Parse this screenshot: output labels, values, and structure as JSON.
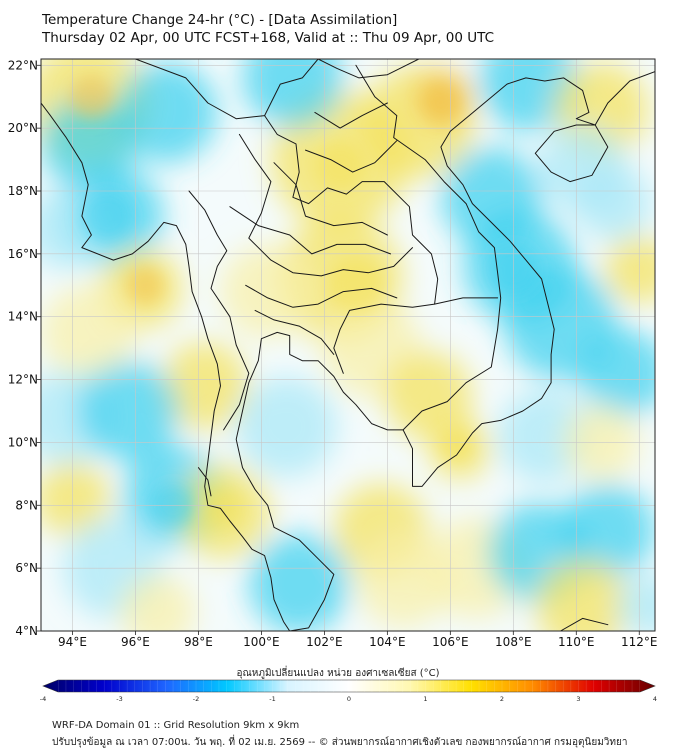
{
  "title": {
    "line1": "Temperature Change 24-hr (°C) - [Data Assimilation]",
    "line2": "Thursday 02 Apr, 00 UTC FCST+168, Valid at :: Thu 09 Apr, 00 UTC"
  },
  "map": {
    "lon_range": [
      93,
      112.5
    ],
    "lat_range": [
      4,
      22.2
    ],
    "lon_ticks": [
      {
        "value": 94,
        "label": "94°E"
      },
      {
        "value": 96,
        "label": "96°E"
      },
      {
        "value": 98,
        "label": "98°E"
      },
      {
        "value": 100,
        "label": "100°E"
      },
      {
        "value": 102,
        "label": "102°E"
      },
      {
        "value": 104,
        "label": "104°E"
      },
      {
        "value": 106,
        "label": "106°E"
      },
      {
        "value": 108,
        "label": "108°E"
      },
      {
        "value": 110,
        "label": "110°E"
      },
      {
        "value": 112,
        "label": "112°E"
      }
    ],
    "lat_ticks": [
      {
        "value": 22,
        "label": "22°N"
      },
      {
        "value": 20,
        "label": "20°N"
      },
      {
        "value": 18,
        "label": "18°N"
      },
      {
        "value": 16,
        "label": "16°N"
      },
      {
        "value": 14,
        "label": "14°N"
      },
      {
        "value": 12,
        "label": "12°N"
      },
      {
        "value": 10,
        "label": "10°N"
      },
      {
        "value": 8,
        "label": "8°N"
      },
      {
        "value": 6,
        "label": "6°N"
      },
      {
        "value": 4,
        "label": "4°N"
      }
    ],
    "colors": {
      "cool": "#3ad0ee",
      "cool_light": "#a8e8f6",
      "warm": "#f4e25a",
      "warm_light": "#f8f0a8",
      "warm_strong": "#f2c24a",
      "coast": "#1a1a1a",
      "grid": "#c8c8c8"
    }
  },
  "colorbar": {
    "label": "อุณหภูมิเปลี่ยนแปลง หน่วย องศาเซลเซียส (°C)",
    "min": -4,
    "max": 4,
    "ticks": [
      {
        "value": -4,
        "label": "-4"
      },
      {
        "value": -3,
        "label": "-3"
      },
      {
        "value": -2,
        "label": "-2"
      },
      {
        "value": -1,
        "label": "-1"
      },
      {
        "value": 0,
        "label": "0"
      },
      {
        "value": 1,
        "label": "1"
      },
      {
        "value": 2,
        "label": "2"
      },
      {
        "value": 3,
        "label": "3"
      },
      {
        "value": 4,
        "label": "4"
      }
    ],
    "stops": [
      "#000066",
      "#0000cc",
      "#1e64ff",
      "#00c8ff",
      "#d8f4ff",
      "#ffffff",
      "#fff8b0",
      "#ffe000",
      "#ff8c00",
      "#e00000",
      "#660000"
    ]
  },
  "footer": {
    "line1": "WRF-DA Domain 01 :: Grid Resolution 9km x 9km",
    "line2": "ปรับปรุงข้อมูล ณ เวลา 07:00น. วัน พฤ. ที่ 02 เม.ย. 2569 -- © ส่วนพยากรณ์อากาศเชิงตัวเลข กองพยากรณ์อากาศ กรมอุตุนิยมวิทยา"
  }
}
